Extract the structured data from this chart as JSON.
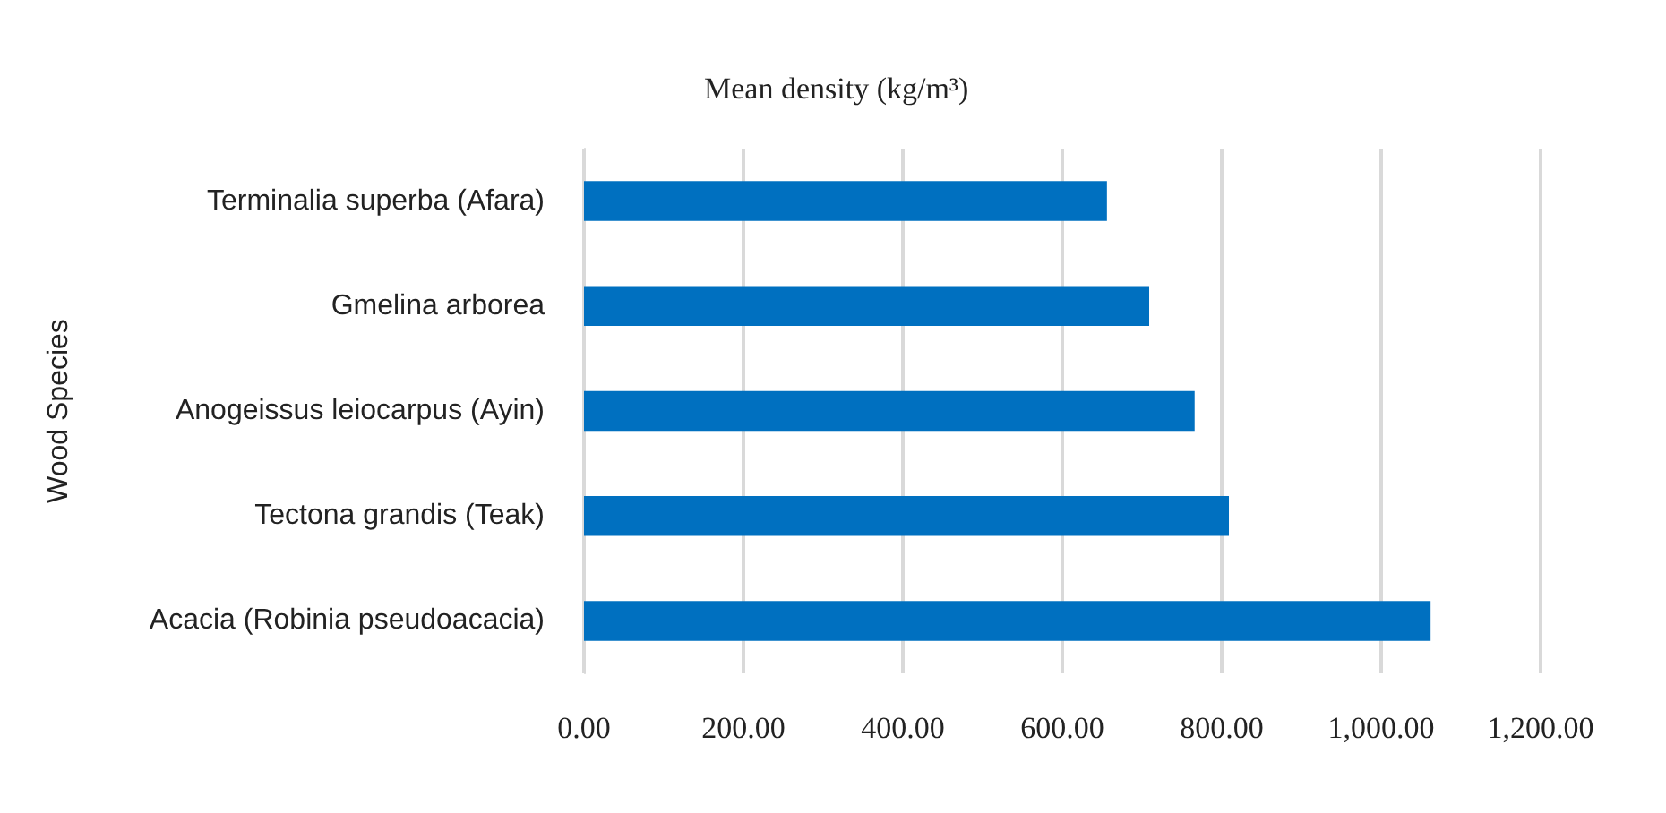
{
  "chart_data": {
    "type": "bar",
    "orientation": "horizontal",
    "title": "Mean density (kg/m³)",
    "ylabel": "Wood Species",
    "categories": [
      "Terminalia superba (Afara)",
      "Gmelina arborea",
      "Anogeissus leiocarpus (Ayin)",
      "Tectona grandis (Teak)",
      "Acacia (Robinia pseudoacacia)"
    ],
    "values": [
      656,
      709,
      766,
      809,
      1062
    ],
    "color": "#0070c0",
    "xlim": [
      0,
      1200
    ],
    "xticks": [
      {
        "value": 0,
        "label": "0.00"
      },
      {
        "value": 200,
        "label": "200.00"
      },
      {
        "value": 400,
        "label": "400.00"
      },
      {
        "value": 600,
        "label": "600.00"
      },
      {
        "value": 800,
        "label": "800.00"
      },
      {
        "value": 1000,
        "label": "1,000.00"
      },
      {
        "value": 1200,
        "label": "1,200.00"
      }
    ],
    "grid": "x"
  }
}
